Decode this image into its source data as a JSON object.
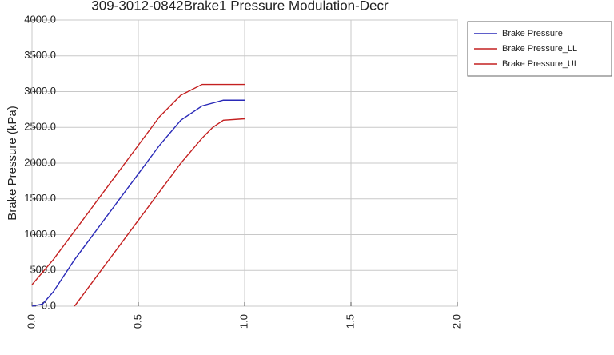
{
  "chart_data": {
    "type": "line",
    "title": "309-3012-0842Brake1 Pressure Modulation-Decr",
    "y_label": "Brake Pressure (kPa)",
    "xlim": [
      0,
      2.0
    ],
    "xticks": [
      {
        "value": 0,
        "label": "0.0"
      },
      {
        "value": 0.5,
        "label": "0.5"
      },
      {
        "value": 1,
        "label": "1.0"
      },
      {
        "value": 1.5,
        "label": "1.5"
      },
      {
        "value": 2,
        "label": "2.0"
      }
    ],
    "ylim": [
      0,
      4000
    ],
    "yticks": [
      {
        "value": 0,
        "label": "0.0"
      },
      {
        "value": 500,
        "label": "500.0"
      },
      {
        "value": 1000,
        "label": "1000.0"
      },
      {
        "value": 1500,
        "label": "1500.0"
      },
      {
        "value": 2000,
        "label": "2000.0"
      },
      {
        "value": 2500,
        "label": "2500.0"
      },
      {
        "value": 3000,
        "label": "3000.0"
      },
      {
        "value": 3500,
        "label": "3500.0"
      },
      {
        "value": 4000,
        "label": "4000.0"
      }
    ],
    "grid": true,
    "series": [
      {
        "name": "Brake Pressure",
        "color": "#2a2ab8",
        "x": [
          0,
          0.05,
          0.1,
          0.2,
          0.3,
          0.4,
          0.5,
          0.6,
          0.7,
          0.8,
          0.9,
          1.0
        ],
        "values": [
          0,
          30,
          200,
          650,
          1050,
          1450,
          1850,
          2250,
          2600,
          2800,
          2880,
          2880
        ]
      },
      {
        "name": "Brake Pressure_LL",
        "color": "#c42020",
        "x": [
          0.2,
          0.3,
          0.4,
          0.5,
          0.6,
          0.7,
          0.8,
          0.85,
          0.9,
          1.0
        ],
        "values": [
          0,
          400,
          800,
          1200,
          1600,
          2000,
          2350,
          2500,
          2600,
          2620
        ]
      },
      {
        "name": "Brake Pressure_UL",
        "color": "#c42020",
        "x": [
          0,
          0.1,
          0.2,
          0.3,
          0.4,
          0.5,
          0.6,
          0.7,
          0.8,
          1.0
        ],
        "values": [
          300,
          650,
          1050,
          1450,
          1850,
          2250,
          2650,
          2950,
          3100,
          3100
        ]
      }
    ]
  }
}
